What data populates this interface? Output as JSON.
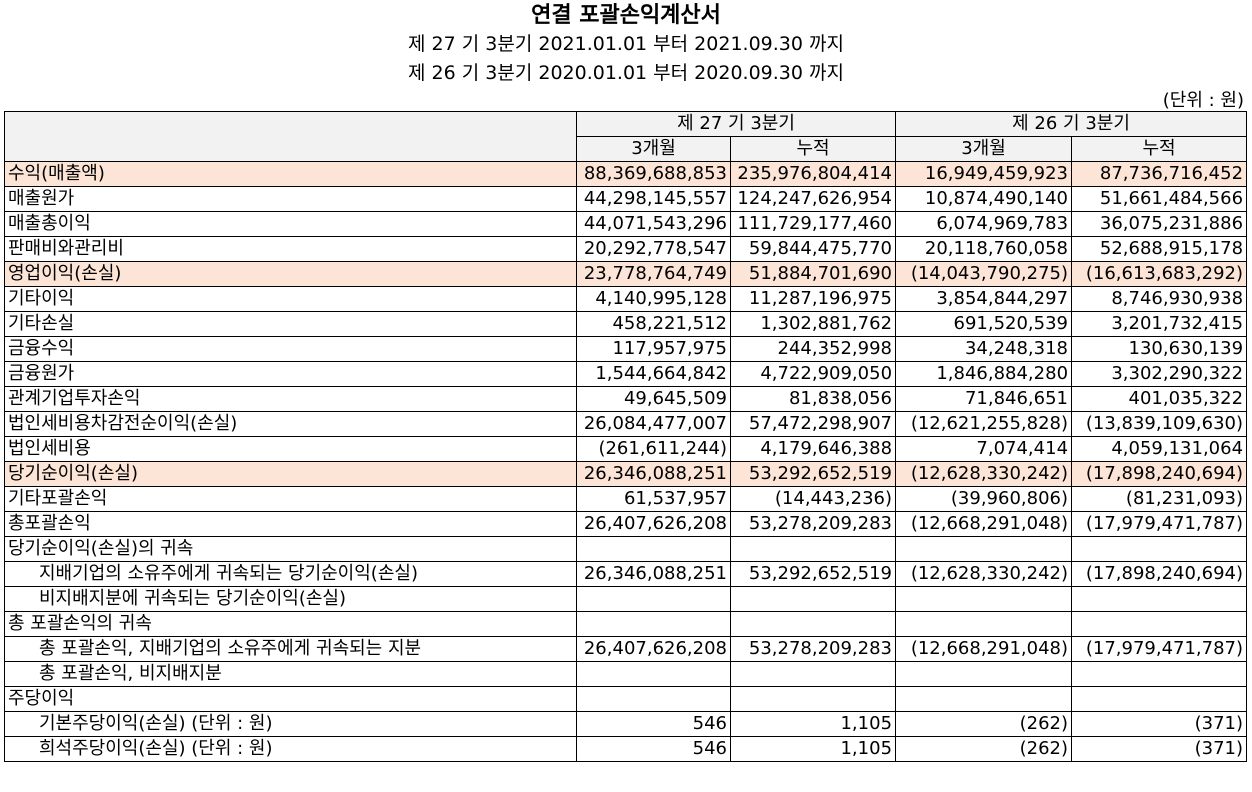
{
  "title": "연결 포괄손익계산서",
  "periods": [
    "제 27 기 3분기 2021.01.01 부터 2021.09.30 까지",
    "제 26 기 3분기 2020.01.01 부터 2020.09.30 까지"
  ],
  "unit": "(단위 : 원)",
  "columns": {
    "p27": "제 27 기 3분기",
    "p26": "제 26 기 3분기",
    "m3": "3개월",
    "cum": "누적"
  },
  "rows": [
    {
      "label": "수익(매출액)",
      "v": [
        "88,369,688,853",
        "235,976,804,414",
        "16,949,459,923",
        "87,736,716,452"
      ]
    },
    {
      "label": "매출원가",
      "v": [
        "44,298,145,557",
        "124,247,626,954",
        "10,874,490,140",
        "51,661,484,566"
      ]
    },
    {
      "label": "매출총이익",
      "v": [
        "44,071,543,296",
        "111,729,177,460",
        "6,074,969,783",
        "36,075,231,886"
      ]
    },
    {
      "label": "판매비와관리비",
      "v": [
        "20,292,778,547",
        "59,844,475,770",
        "20,118,760,058",
        "52,688,915,178"
      ]
    },
    {
      "label": "영업이익(손실)",
      "v": [
        "23,778,764,749",
        "51,884,701,690",
        "(14,043,790,275)",
        "(16,613,683,292)"
      ]
    },
    {
      "label": "기타이익",
      "v": [
        "4,140,995,128",
        "11,287,196,975",
        "3,854,844,297",
        "8,746,930,938"
      ]
    },
    {
      "label": "기타손실",
      "v": [
        "458,221,512",
        "1,302,881,762",
        "691,520,539",
        "3,201,732,415"
      ]
    },
    {
      "label": "금융수익",
      "v": [
        "117,957,975",
        "244,352,998",
        "34,248,318",
        "130,630,139"
      ]
    },
    {
      "label": "금융원가",
      "v": [
        "1,544,664,842",
        "4,722,909,050",
        "1,846,884,280",
        "3,302,290,322"
      ]
    },
    {
      "label": "관계기업투자손익",
      "v": [
        "49,645,509",
        "81,838,056",
        "71,846,651",
        "401,035,322"
      ]
    },
    {
      "label": "법인세비용차감전순이익(손실)",
      "v": [
        "26,084,477,007",
        "57,472,298,907",
        "(12,621,255,828)",
        "(13,839,109,630)"
      ]
    },
    {
      "label": "법인세비용",
      "v": [
        "(261,611,244)",
        "4,179,646,388",
        "7,074,414",
        "4,059,131,064"
      ]
    },
    {
      "label": "당기순이익(손실)",
      "v": [
        "26,346,088,251",
        "53,292,652,519",
        "(12,628,330,242)",
        "(17,898,240,694)"
      ]
    },
    {
      "label": "기타포괄손익",
      "v": [
        "61,537,957",
        "(14,443,236)",
        "(39,960,806)",
        "(81,231,093)"
      ]
    },
    {
      "label": "총포괄손익",
      "v": [
        "26,407,626,208",
        "53,278,209,283",
        "(12,668,291,048)",
        "(17,979,471,787)"
      ]
    },
    {
      "label": "당기순이익(손실)의 귀속",
      "v": [
        "",
        "",
        "",
        ""
      ]
    },
    {
      "label": "지배기업의 소유주에게 귀속되는 당기순이익(손실)",
      "v": [
        "26,346,088,251",
        "53,292,652,519",
        "(12,628,330,242)",
        "(17,898,240,694)"
      ]
    },
    {
      "label": "비지배지분에 귀속되는 당기순이익(손실)",
      "v": [
        "",
        "",
        "",
        ""
      ]
    },
    {
      "label": "총 포괄손익의 귀속",
      "v": [
        "",
        "",
        "",
        ""
      ]
    },
    {
      "label": "총 포괄손익, 지배기업의 소유주에게 귀속되는 지분",
      "v": [
        "26,407,626,208",
        "53,278,209,283",
        "(12,668,291,048)",
        "(17,979,471,787)"
      ]
    },
    {
      "label": "총 포괄손익, 비지배지분",
      "v": [
        "",
        "",
        "",
        ""
      ]
    },
    {
      "label": "주당이익",
      "v": [
        "",
        "",
        "",
        ""
      ]
    },
    {
      "label": "기본주당이익(손실) (단위 : 원)",
      "v": [
        "546",
        "1,105",
        "(262)",
        "(371)"
      ]
    },
    {
      "label": "희석주당이익(손실) (단위 : 원)",
      "v": [
        "546",
        "1,105",
        "(262)",
        "(371)"
      ]
    }
  ]
}
